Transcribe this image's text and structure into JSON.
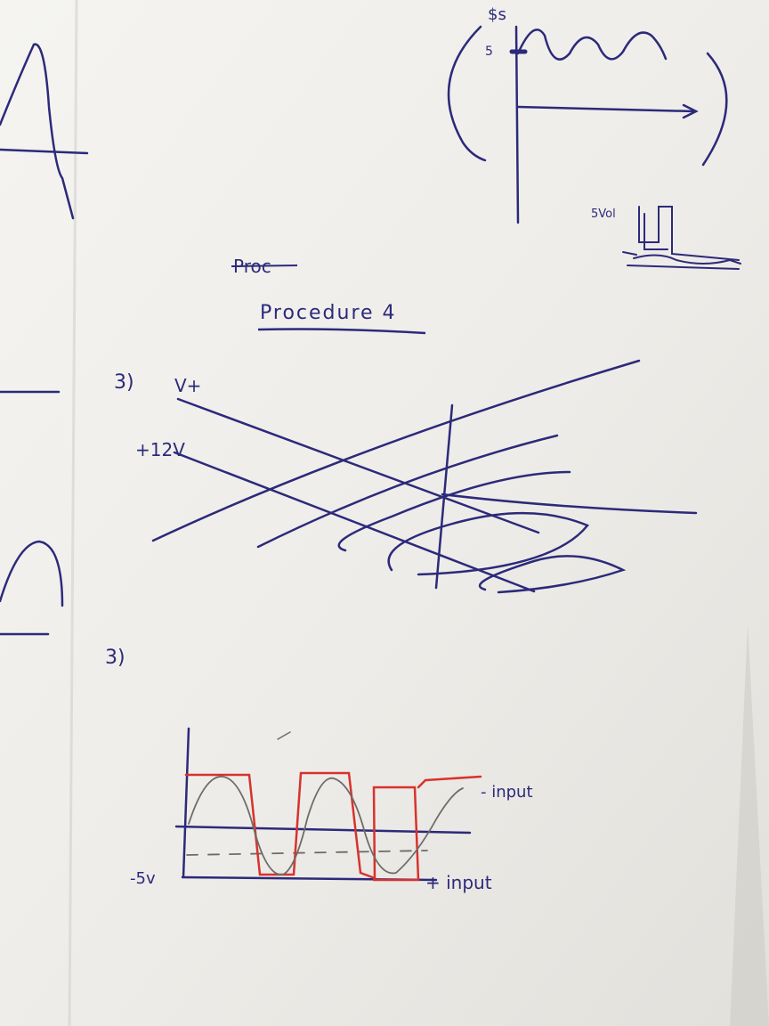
{
  "photo": {
    "ink_color": "#2c2a7a",
    "red_ink_color": "#d8322e",
    "pencil_color": "#6e6c68",
    "paper_color": "#f1f0ed"
  },
  "top_right_sketch": {
    "label_top": "$s",
    "label_level": "5"
  },
  "small_sketch": {
    "label": "5Vol"
  },
  "heading": {
    "crossed_out": "Proc",
    "title": "Procedure 4"
  },
  "section_a": {
    "number": "3)",
    "vplus": "V+",
    "v12": "+12V"
  },
  "section_b": {
    "number": "3)",
    "minus5v": "-5v",
    "label_input_top": "- input",
    "label_input_bottom": "+ input"
  }
}
